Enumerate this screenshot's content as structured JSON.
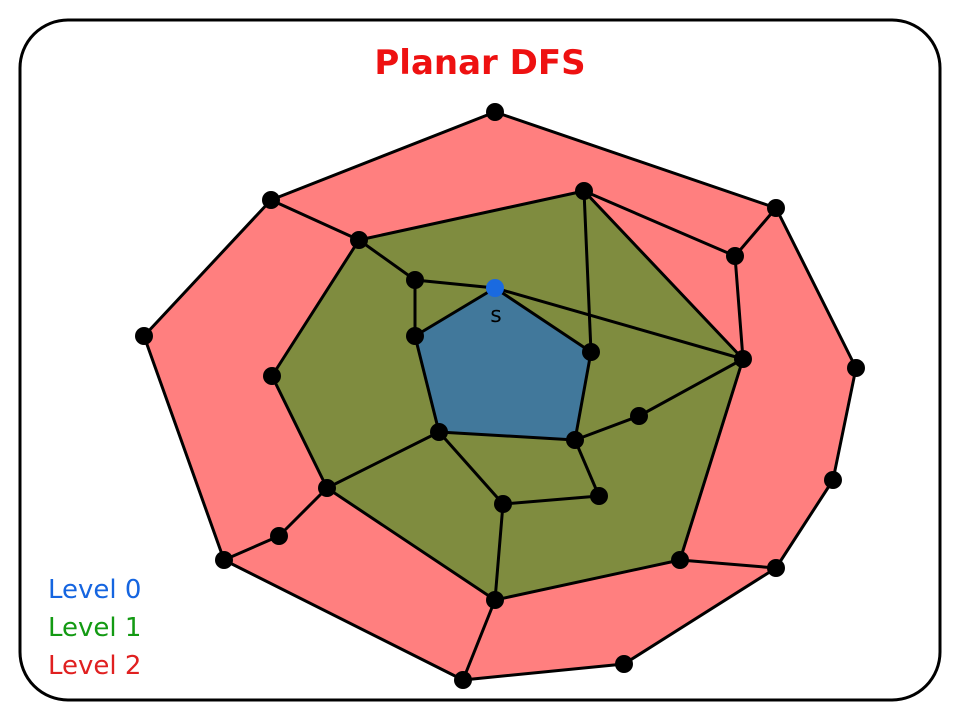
{
  "title": "Planar DFS",
  "source_label": "s",
  "legend": [
    {
      "text": "Level 0",
      "color": "#1565e0"
    },
    {
      "text": "Level 1",
      "color": "#139a13"
    },
    {
      "text": "Level 2",
      "color": "#e02020"
    }
  ],
  "colors": {
    "title": "#ee1111",
    "level0_fill": "#41789b",
    "level1_fill": "#7f8c3f",
    "level2_fill": "#ff7f7f",
    "edge": "#000000",
    "node": "#000000",
    "source_node": "#1a6ae0",
    "frame": "#000000"
  }
}
